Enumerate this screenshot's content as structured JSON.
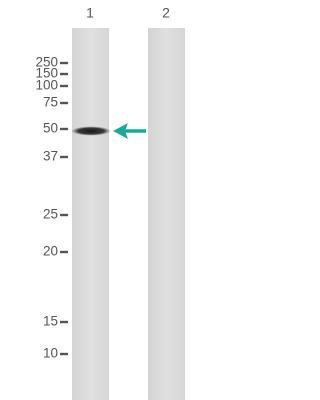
{
  "lanes": [
    "1",
    "2"
  ],
  "markers": [
    250,
    150,
    100,
    75,
    50,
    37,
    25,
    20,
    15,
    10
  ]
}
